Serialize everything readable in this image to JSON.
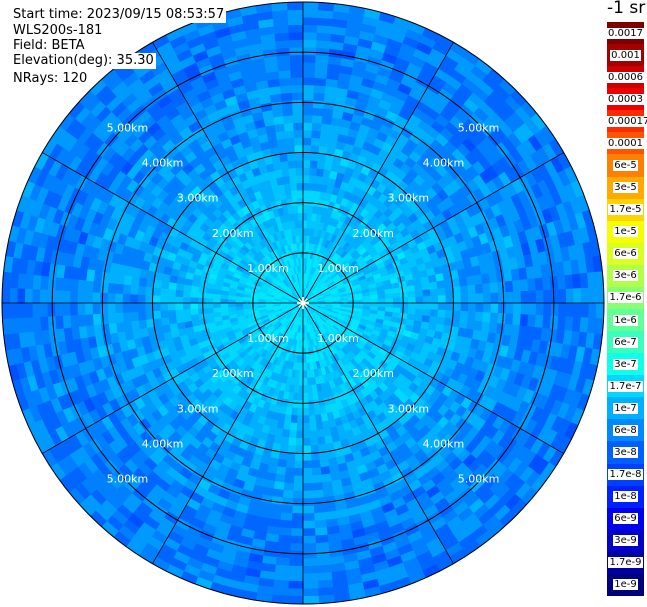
{
  "header": {
    "start_time": "Start time: 2023/09/15 08:53:57",
    "instrument": "WLS200s-181",
    "field": "Field: BETA",
    "elevation": "Elevation(deg): 35.30",
    "nrays": "NRays: 120"
  },
  "chart_data": {
    "type": "heatmap",
    "projection": "polar-ppi",
    "field": "BETA",
    "elevation_deg": 35.3,
    "n_rays": 120,
    "range_rings_km": [
      1,
      2,
      3,
      4,
      5
    ],
    "ring_labels": [
      "1.00km",
      "2.00km",
      "3.00km",
      "4.00km",
      "5.00km"
    ],
    "max_range_km": 6.0,
    "spoke_angles_deg": [
      0,
      30,
      60,
      90,
      120,
      150,
      180,
      210,
      240,
      270,
      300,
      330
    ],
    "label_quadrants": [
      "upper-left",
      "upper-right",
      "lower-left",
      "lower-right"
    ],
    "colorbar": {
      "unit_label": "-1 sr",
      "ticks": [
        "0.0017",
        "0.001",
        "0.0006",
        "0.0003",
        "0.00017",
        "0.0001",
        "6e-5",
        "3e-5",
        "1.7e-5",
        "1e-5",
        "6e-6",
        "3e-6",
        "1.7e-6",
        "1e-6",
        "6e-7",
        "3e-7",
        "1.7e-7",
        "1e-7",
        "6e-8",
        "3e-8",
        "1.7e-8",
        "1e-8",
        "6e-9",
        "3e-9",
        "1.7e-9",
        "1e-9"
      ],
      "colors": [
        "#7f0000",
        "#a50000",
        "#cc0000",
        "#ee0000",
        "#ff2a00",
        "#ff5500",
        "#ff8000",
        "#ffaa00",
        "#ffd400",
        "#f5ff00",
        "#d9ff20",
        "#b0ff48",
        "#88ff70",
        "#60ff98",
        "#38ffc0",
        "#10ffe8",
        "#00d8ff",
        "#00b0ff",
        "#0088ff",
        "#0060ff",
        "#0040ff",
        "#0020ff",
        "#0000f0",
        "#0000c8",
        "#0000a0",
        "#00007f"
      ]
    },
    "dominant_value_range": [
      "1e-8",
      "1.7e-7"
    ]
  }
}
